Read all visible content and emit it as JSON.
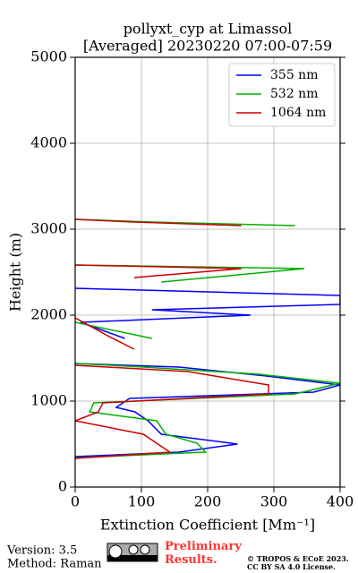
{
  "chart_data": {
    "type": "line",
    "title": "pollyxt_cyp at Limassol",
    "subtitle": "[Averaged] 20230220 07:00-07:59",
    "x_label": "Extinction Coefficient [Mm⁻¹]",
    "y_label": "Height (m)",
    "xlim": [
      0,
      400
    ],
    "ylim": [
      0,
      5000
    ],
    "xticks": [
      0,
      100,
      200,
      300,
      400
    ],
    "yticks": [
      0,
      1000,
      2000,
      3000,
      4000,
      5000
    ],
    "grid": true,
    "legend": "upper right",
    "series": [
      {
        "name": "355 nm",
        "color": "#0000ff",
        "x": [
          0,
          157,
          245,
          130,
          110,
          90,
          62,
          82,
          360,
          400,
          292,
          157,
          0,
          null,
          75,
          8,
          265,
          116,
          400,
          400,
          0
        ],
        "y": [
          354,
          406,
          500,
          615,
          771,
          875,
          927,
          1031,
          1104,
          1188,
          1290,
          1396,
          1437,
          null,
          1729,
          1917,
          2000,
          2063,
          2125,
          2229,
          2312
        ]
      },
      {
        "name": "532 nm",
        "color": "#00b000",
        "x": [
          0,
          197,
          184,
          137,
          123,
          22,
          28,
          332,
          400,
          278,
          103,
          0,
          null,
          116,
          0,
          null,
          130,
          346,
          0,
          null,
          332,
          116,
          0
        ],
        "y": [
          340,
          406,
          510,
          615,
          771,
          875,
          979,
          1083,
          1208,
          1313,
          1396,
          1437,
          null,
          1729,
          1917,
          null,
          2385,
          2542,
          2583,
          null,
          3042,
          3083,
          3115
        ]
      },
      {
        "name": "1064 nm",
        "color": "#cc0000",
        "x": [
          0,
          143,
          123,
          103,
          0,
          35,
          42,
          292,
          292,
          170,
          0,
          null,
          89,
          49,
          0,
          null,
          89,
          251,
          0,
          null,
          251,
          89,
          0
        ],
        "y": [
          333,
          406,
          510,
          615,
          771,
          875,
          979,
          1083,
          1188,
          1344,
          1417,
          null,
          1604,
          1760,
          1969,
          null,
          2438,
          2542,
          2583,
          null,
          3042,
          3083,
          3115
        ]
      }
    ]
  },
  "footer": {
    "version": "Version: 3.5",
    "method": "Method: Raman",
    "preliminary": "Preliminary Results.",
    "copyright": "© TROPOS & ECoE 2023.",
    "license": "CC BY SA 4.0 License."
  }
}
